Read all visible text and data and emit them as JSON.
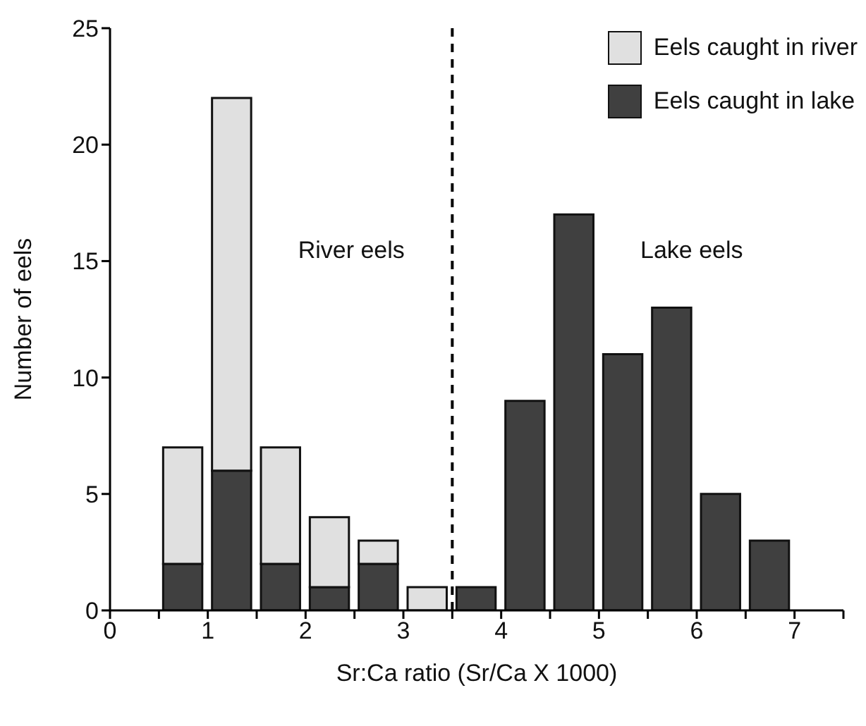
{
  "chart_data": {
    "type": "bar",
    "stacked": true,
    "xlabel": "Sr:Ca ratio (Sr/Ca X 1000)",
    "ylabel": "Number of eels",
    "x": [
      0.75,
      1.25,
      1.75,
      2.25,
      2.75,
      3.25,
      3.75,
      4.25,
      4.75,
      5.25,
      5.75,
      6.25,
      6.75
    ],
    "series": [
      {
        "name": "Eels caught in lake",
        "color": "#404040",
        "values": [
          2,
          6,
          2,
          1,
          2,
          0,
          1,
          9,
          17,
          11,
          13,
          5,
          3
        ]
      },
      {
        "name": "Eels caught in river",
        "color": "#e0e0e0",
        "values": [
          5,
          16,
          5,
          3,
          1,
          1,
          0,
          0,
          0,
          0,
          0,
          0,
          0
        ]
      }
    ],
    "xlim": [
      0,
      7.5
    ],
    "xticks": [
      0,
      {
        "value": 0.5,
        "label": null
      },
      1,
      {
        "value": 1.5,
        "label": null
      },
      2,
      {
        "value": 2.5,
        "label": null
      },
      3,
      {
        "value": 3.5,
        "label": null
      },
      4,
      {
        "value": 4.5,
        "label": null
      },
      5,
      {
        "value": 5.5,
        "label": null
      },
      6,
      {
        "value": 6.5,
        "label": null
      },
      7,
      {
        "value": 7.5,
        "label": null
      }
    ],
    "ylim": [
      0,
      25
    ],
    "yticks": [
      0,
      5,
      10,
      15,
      20,
      25
    ],
    "ref_lines": [
      {
        "axis": "x",
        "value": 3.5,
        "line_style": "dashed",
        "color": "#000000"
      }
    ],
    "annotations": [
      "River eels",
      "Lake eels"
    ],
    "legend": "top right",
    "grid": false
  }
}
